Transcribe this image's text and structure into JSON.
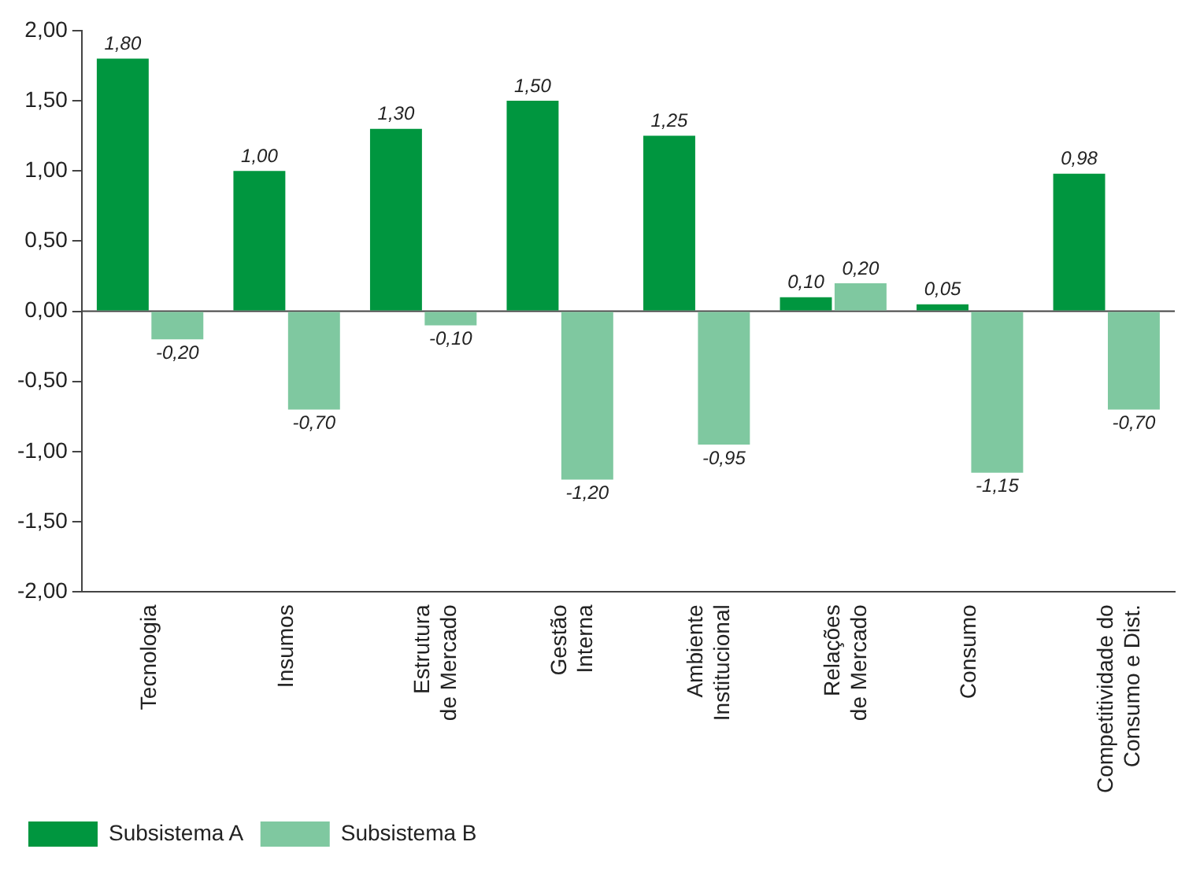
{
  "chart_data": {
    "type": "bar",
    "categories": [
      "Tecnologia",
      "Insumos",
      "Estrutura\nde Mercado",
      "Gestão\nInterna",
      "Ambiente\nInstitucional",
      "Relações\nde Mercado",
      "Consumo",
      "Competitividade do\nConsumo e Dist."
    ],
    "series": [
      {
        "name": "Subsistema A",
        "color": "#00963f",
        "values": [
          1.8,
          1.0,
          1.3,
          1.5,
          1.25,
          0.1,
          0.05,
          0.98
        ],
        "value_labels": [
          "1,80",
          "1,00",
          "1,30",
          "1,50",
          "1,25",
          "0,10",
          "0,05",
          "0,98"
        ]
      },
      {
        "name": "Subsistema B",
        "color": "#7fc8a0",
        "values": [
          -0.2,
          -0.7,
          -0.1,
          -1.2,
          -0.95,
          0.2,
          -1.15,
          -0.7
        ],
        "value_labels": [
          "-0,20",
          "-0,70",
          "-0,10",
          "-1,20",
          "-0,95",
          "0,20",
          "-1,15",
          "-0,70"
        ]
      }
    ],
    "ylim": [
      -2,
      2
    ],
    "yticks": [
      {
        "value": -2,
        "label": "-2,00"
      },
      {
        "value": -1.5,
        "label": "-1,50"
      },
      {
        "value": -1,
        "label": "-1,00"
      },
      {
        "value": -0.5,
        "label": "-0,50"
      },
      {
        "value": 0,
        "label": "0,00"
      },
      {
        "value": 0.5,
        "label": "0,50"
      },
      {
        "value": 1,
        "label": "1,00"
      },
      {
        "value": 1.5,
        "label": "1,50"
      },
      {
        "value": 2,
        "label": "2,00"
      }
    ],
    "grid": false,
    "ref_lines": [
      {
        "axis": "y",
        "value": 0,
        "color": "#444444"
      }
    ],
    "legend": "bottom left"
  }
}
